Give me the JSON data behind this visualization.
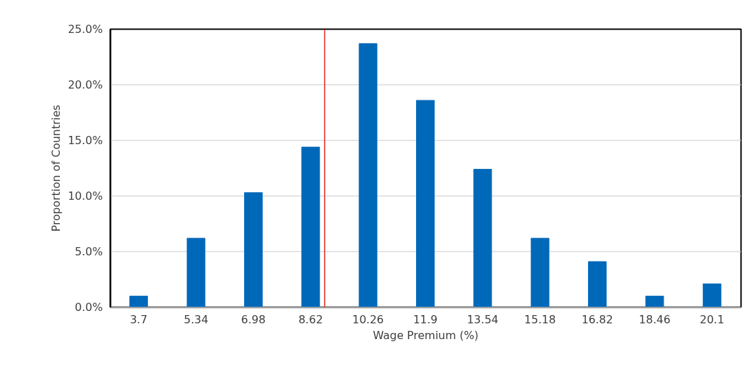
{
  "chart_data": {
    "type": "bar",
    "xlabel": "Wage Premium (%)",
    "ylabel": "Proportion of Countries",
    "x": [
      3.7,
      5.34,
      6.98,
      8.62,
      10.26,
      11.9,
      13.54,
      15.18,
      16.82,
      18.46,
      20.1
    ],
    "values": [
      1.0,
      6.2,
      10.3,
      14.4,
      23.7,
      18.6,
      12.4,
      6.2,
      4.1,
      1.0,
      2.1
    ],
    "color": "#0068b9",
    "xlim": [
      2.89,
      20.93
    ],
    "xticks": [
      3.7,
      5.34,
      6.98,
      8.62,
      10.26,
      11.9,
      13.54,
      15.18,
      16.82,
      18.46,
      20.1
    ],
    "ylim": [
      0,
      25
    ],
    "yticks": [
      {
        "value": 0,
        "label": "0.0%"
      },
      {
        "value": 5,
        "label": "5.0%"
      },
      {
        "value": 10,
        "label": "10.0%"
      },
      {
        "value": 15,
        "label": "15.0%"
      },
      {
        "value": 20,
        "label": "20.0%"
      },
      {
        "value": 25,
        "label": "25.0%"
      }
    ],
    "ref_lines": [
      {
        "axis": "x",
        "value": 9.02,
        "color": "#e02020"
      }
    ],
    "grid": "y"
  }
}
